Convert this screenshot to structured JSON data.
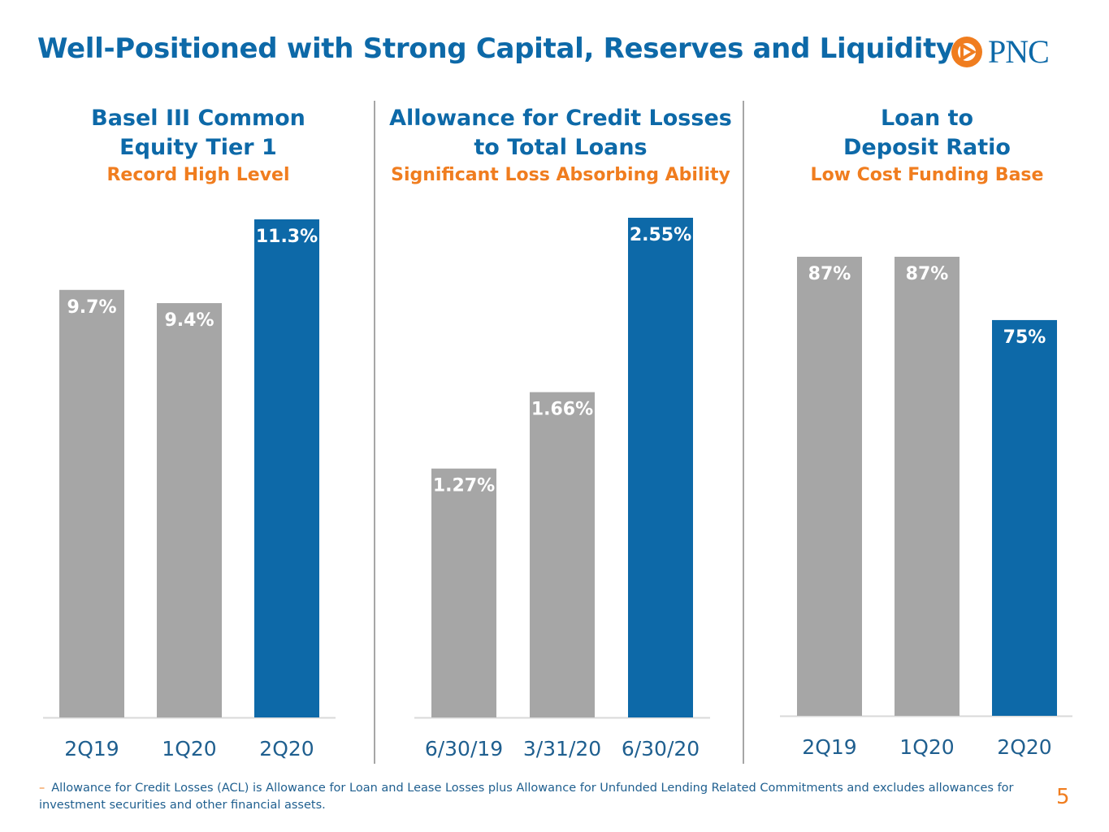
{
  "header": {
    "title": "Well-Positioned with Strong Capital, Reserves and Liquidity",
    "logo_text": "PNC"
  },
  "colors": {
    "gray": "#a6a6a6",
    "blue": "#0d69a8",
    "orange": "#f07d1f",
    "axis_label": "#1f5f8f"
  },
  "chart_data": [
    {
      "type": "bar",
      "title_line1": "Basel III Common",
      "title_line2": "Equity Tier 1",
      "subtitle": "Record High Level",
      "categories": [
        "2Q19",
        "1Q20",
        "2Q20"
      ],
      "values": [
        9.7,
        9.4,
        11.3
      ],
      "labels": [
        "9.7%",
        "9.4%",
        "11.3%"
      ],
      "highlight": [
        false,
        false,
        true
      ],
      "ylim": [
        0,
        11.3
      ]
    },
    {
      "type": "bar",
      "title_line1": "Allowance for Credit Losses",
      "title_line2": "to Total Loans",
      "subtitle": "Significant Loss Absorbing Ability",
      "categories": [
        "6/30/19",
        "3/31/20",
        "6/30/20"
      ],
      "values": [
        1.27,
        1.66,
        2.55
      ],
      "labels": [
        "1.27%",
        "1.66%",
        "2.55%"
      ],
      "highlight": [
        false,
        false,
        true
      ],
      "ylim": [
        0,
        2.55
      ]
    },
    {
      "type": "bar",
      "title_line1": "Loan to",
      "title_line2": "Deposit Ratio",
      "subtitle": "Low Cost Funding Base",
      "categories": [
        "2Q19",
        "1Q20",
        "2Q20"
      ],
      "values": [
        87,
        87,
        75
      ],
      "labels": [
        "87%",
        "87%",
        "75%"
      ],
      "highlight": [
        false,
        false,
        true
      ],
      "ylim": [
        0,
        103
      ]
    }
  ],
  "footnote": "Allowance for Credit Losses (ACL) is Allowance for Loan and Lease Losses plus Allowance for Unfunded Lending Related Commitments and excludes allowances for investment securities and other financial assets.",
  "page_number": "5"
}
